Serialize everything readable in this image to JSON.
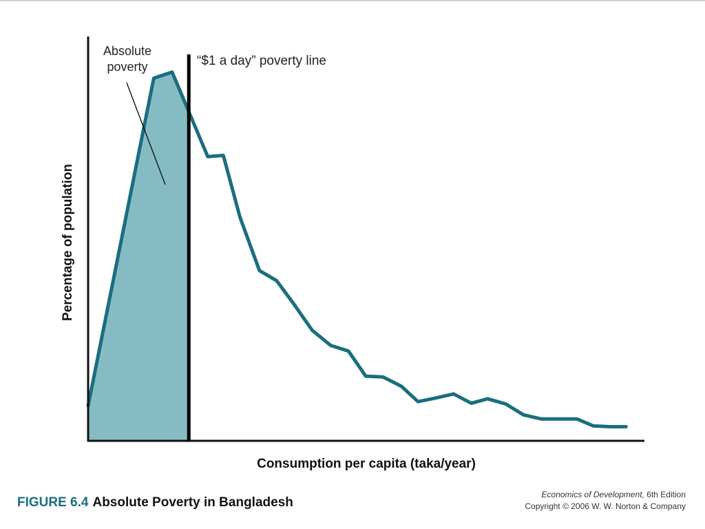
{
  "figure": {
    "number": "FIGURE 6.4",
    "title": "Absolute Poverty in Bangladesh"
  },
  "credit": {
    "book_title": "Economics of Development,",
    "edition": "6th Edition",
    "copyright": "Copyright © 2006 W. W. Norton & Company"
  },
  "colors": {
    "curve": "#1a6e7e",
    "fill": "#85bcc3",
    "axis": "#111111",
    "poverty_line": "#000000"
  },
  "chart_data": {
    "type": "line",
    "title": "",
    "xlabel": "Consumption per capita (taka/year)",
    "ylabel": "Percentage of population",
    "grid": false,
    "ticks_shown": false,
    "xlim": [
      0,
      100
    ],
    "ylim": [
      0,
      100
    ],
    "series": [
      {
        "x": [
          0,
          11.8,
          15.1,
          21.5,
          24.3,
          27.3,
          30.8,
          33.9,
          37.1,
          40.3,
          43.6,
          46.8,
          49.9,
          53.0,
          56.3,
          59.3,
          62.5,
          65.7,
          68.9,
          71.8,
          75.1,
          78.3,
          81.5,
          84.5,
          87.9,
          90.8,
          93.8,
          96.7
        ],
        "y": [
          8.7,
          89.7,
          91.2,
          70.3,
          70.6,
          55.3,
          42.1,
          39.6,
          33.6,
          27.3,
          23.6,
          22.2,
          16.0,
          15.8,
          13.5,
          9.7,
          10.6,
          11.6,
          9.3,
          10.4,
          9.1,
          6.4,
          5.4,
          5.4,
          5.4,
          3.7,
          3.5,
          3.5
        ]
      }
    ],
    "annotations": {
      "shaded_region": "Absolute poverty",
      "poverty_line": {
        "x": 18.1,
        "label": "“$1 a day” poverty line"
      }
    }
  }
}
